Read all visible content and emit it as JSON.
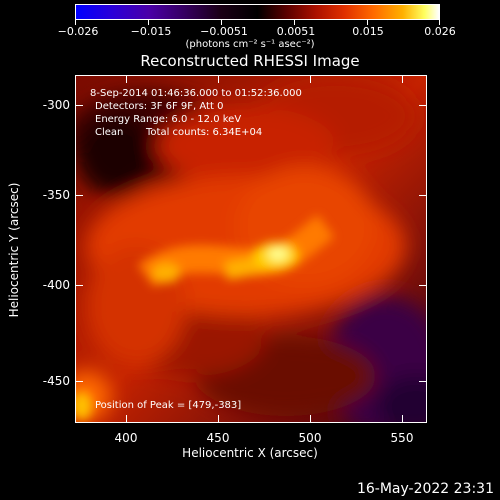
{
  "colorbar": {
    "ticks": [
      "−0.026",
      "−0.015",
      "−0.0051",
      "0.0051",
      "0.015",
      "0.026"
    ],
    "units": "(photons cm⁻² s⁻¹ asec⁻²)"
  },
  "title": "Reconstructed RHESSI Image",
  "overlay": {
    "time_range": "8-Sep-2014 01:46:36.000 to 01:52:36.000",
    "detectors": "Detectors: 3F 6F 9F, Att 0",
    "energy": "Energy Range: 6.0 - 12.0 keV",
    "algorithm": "Clean",
    "total_counts": "Total counts: 6.34E+04",
    "peak": "Position of Peak = [479,-383]"
  },
  "axes": {
    "x_title": "Heliocentric X (arcsec)",
    "y_title": "Heliocentric Y (arcsec)",
    "x_ticks": [
      "400",
      "450",
      "500",
      "550"
    ],
    "y_ticks": [
      "-300",
      "-350",
      "-400",
      "-450"
    ]
  },
  "timestamp": "16-May-2022 23:31"
}
